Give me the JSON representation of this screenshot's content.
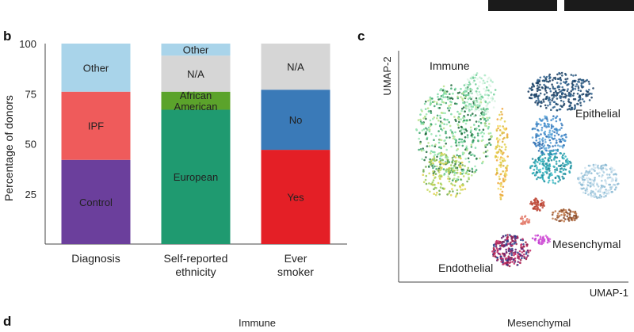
{
  "panels": {
    "b": "b",
    "c": "c",
    "d": "d"
  },
  "chart_data": [
    {
      "type": "bar",
      "stacked": true,
      "ylabel": "Percentage of donors",
      "ylim": [
        0,
        100
      ],
      "yticks": [
        25,
        50,
        75,
        100
      ],
      "categories": [
        "Diagnosis",
        "Self-reported ethnicity",
        "Ever smoker"
      ],
      "category_lines": [
        [
          "Diagnosis"
        ],
        [
          "Self-reported",
          "ethnicity"
        ],
        [
          "Ever",
          "smoker"
        ]
      ],
      "stacks": [
        {
          "category": "Diagnosis",
          "segments": [
            {
              "label": "Control",
              "value": 42,
              "color": "#6b3f9c"
            },
            {
              "label": "IPF",
              "value": 34,
              "color": "#ef5b5b"
            },
            {
              "label": "Other",
              "value": 24,
              "color": "#a9d4ea"
            }
          ]
        },
        {
          "category": "Self-reported ethnicity",
          "segments": [
            {
              "label": "European",
              "value": 67,
              "color": "#1f9a70"
            },
            {
              "label": "African American",
              "label_lines": [
                "African",
                "American"
              ],
              "value": 9,
              "color": "#5ba32b"
            },
            {
              "label": "N/A",
              "value": 18,
              "color": "#d6d6d6"
            },
            {
              "label": "Other",
              "value": 6,
              "color": "#a9d4ea"
            }
          ]
        },
        {
          "category": "Ever smoker",
          "segments": [
            {
              "label": "Yes",
              "value": 47,
              "color": "#e41f26"
            },
            {
              "label": "No",
              "value": 30,
              "color": "#3a7ab8"
            },
            {
              "label": "N/A",
              "value": 23,
              "color": "#d6d6d6"
            }
          ]
        }
      ]
    },
    {
      "type": "scatter",
      "xlabel": "UMAP-1",
      "ylabel": "UMAP-2",
      "clusters": [
        {
          "label": "Immune",
          "color": "#7ad8a2"
        },
        {
          "label": "Epithelial",
          "color": "#2f6fb0"
        },
        {
          "label": "Mesenchymal",
          "color": "#c23bd0"
        },
        {
          "label": "Endothelial",
          "color": "#9b1d4a"
        }
      ]
    }
  ],
  "bottom_labels": {
    "immune": "Immune",
    "mesenchymal": "Mesenchymal"
  }
}
